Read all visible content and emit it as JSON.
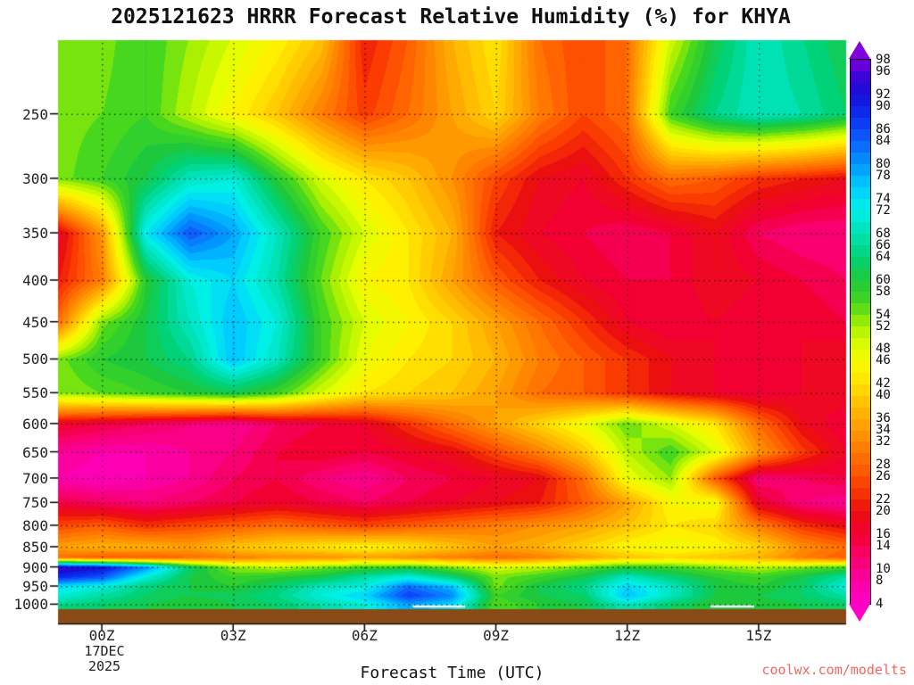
{
  "watermark": "coolwx.com/modelts",
  "chart_data": {
    "type": "heatmap",
    "title": "2025121623 HRRR Forecast Relative Humidity (%) for KHYA",
    "units": "% relative humidity",
    "xlabel": "Forecast Time (UTC)",
    "x_tick_labels": [
      "00Z",
      "03Z",
      "06Z",
      "09Z",
      "12Z",
      "15Z"
    ],
    "x_tick_hours": [
      1,
      4,
      7,
      10,
      13,
      16
    ],
    "hours_total": 18,
    "start_date_line1": "17DEC",
    "start_date_line2": "2025",
    "y_tick_labels": [
      250,
      300,
      350,
      400,
      450,
      500,
      550,
      600,
      650,
      700,
      750,
      800,
      850,
      900,
      950,
      1000
    ],
    "y_scale": "log-pressure",
    "pressure_axis_top_hpa": 203,
    "pressure_axis_bottom_hpa": 1056,
    "surface_pressure_hpa": 1012,
    "ground_color": "#8a4a16",
    "forecast_hours": [
      0,
      1,
      2,
      3,
      4,
      5,
      6,
      7,
      8,
      9,
      10,
      11,
      12,
      13,
      14,
      15,
      16,
      17,
      18
    ],
    "pressure_levels_hpa": [
      200,
      250,
      300,
      350,
      400,
      450,
      500,
      550,
      600,
      650,
      700,
      750,
      800,
      850,
      875,
      900,
      925,
      950,
      975,
      1000
    ],
    "rh_percent": [
      [
        56,
        55,
        58,
        54,
        50,
        46,
        40,
        22,
        28,
        38,
        44,
        30,
        26,
        30,
        50,
        62,
        70,
        66,
        62
      ],
      [
        55,
        56,
        58,
        52,
        46,
        40,
        32,
        25,
        30,
        36,
        42,
        32,
        26,
        30,
        58,
        66,
        70,
        68,
        64
      ],
      [
        55,
        58,
        62,
        70,
        72,
        60,
        50,
        44,
        40,
        34,
        26,
        20,
        18,
        24,
        30,
        28,
        24,
        22,
        20
      ],
      [
        18,
        35,
        74,
        86,
        80,
        70,
        58,
        50,
        44,
        38,
        22,
        18,
        16,
        14,
        16,
        20,
        14,
        12,
        12
      ],
      [
        22,
        32,
        60,
        72,
        76,
        68,
        56,
        46,
        44,
        36,
        28,
        22,
        18,
        16,
        16,
        20,
        18,
        16,
        14
      ],
      [
        30,
        55,
        62,
        70,
        78,
        72,
        58,
        50,
        46,
        42,
        36,
        30,
        24,
        18,
        16,
        18,
        16,
        18,
        16
      ],
      [
        55,
        60,
        62,
        66,
        78,
        70,
        58,
        48,
        44,
        42,
        38,
        32,
        28,
        24,
        20,
        18,
        16,
        18,
        20
      ],
      [
        54,
        56,
        58,
        60,
        62,
        58,
        50,
        44,
        42,
        40,
        36,
        30,
        28,
        24,
        20,
        18,
        16,
        18,
        20
      ],
      [
        18,
        16,
        14,
        12,
        10,
        14,
        16,
        18,
        24,
        30,
        36,
        42,
        48,
        56,
        50,
        44,
        30,
        20,
        16
      ],
      [
        10,
        8,
        8,
        10,
        12,
        16,
        18,
        16,
        18,
        20,
        26,
        32,
        40,
        52,
        58,
        50,
        35,
        25,
        18
      ],
      [
        8,
        6,
        8,
        10,
        14,
        16,
        12,
        10,
        14,
        16,
        18,
        20,
        30,
        48,
        54,
        28,
        12,
        14,
        16
      ],
      [
        16,
        14,
        12,
        14,
        16,
        18,
        16,
        14,
        16,
        18,
        20,
        22,
        28,
        36,
        46,
        48,
        18,
        12,
        10
      ],
      [
        26,
        28,
        24,
        26,
        28,
        30,
        28,
        26,
        28,
        30,
        32,
        34,
        36,
        40,
        44,
        42,
        32,
        24,
        20
      ],
      [
        36,
        38,
        38,
        36,
        40,
        42,
        44,
        46,
        44,
        40,
        36,
        38,
        42,
        46,
        48,
        46,
        42,
        34,
        30
      ],
      [
        30,
        28,
        28,
        30,
        32,
        34,
        34,
        36,
        34,
        32,
        30,
        32,
        36,
        40,
        42,
        40,
        38,
        32,
        28
      ],
      [
        96,
        93,
        82,
        64,
        54,
        52,
        55,
        58,
        60,
        55,
        50,
        52,
        56,
        60,
        58,
        55,
        52,
        55,
        58
      ],
      [
        90,
        86,
        72,
        62,
        58,
        60,
        62,
        68,
        72,
        65,
        55,
        58,
        62,
        70,
        65,
        60,
        58,
        62,
        68
      ],
      [
        75,
        72,
        65,
        62,
        60,
        64,
        70,
        72,
        84,
        78,
        55,
        62,
        66,
        76,
        70,
        62,
        60,
        64,
        72
      ],
      [
        72,
        68,
        64,
        62,
        63,
        66,
        72,
        76,
        88,
        82,
        58,
        62,
        64,
        78,
        70,
        62,
        62,
        64,
        68
      ],
      [
        66,
        64,
        62,
        60,
        62,
        64,
        68,
        72,
        80,
        76,
        56,
        60,
        62,
        70,
        64,
        60,
        60,
        62,
        64
      ]
    ],
    "surface_marks": [
      {
        "hour_start": 8.1,
        "hour_end": 9.3
      },
      {
        "hour_start": 14.9,
        "hour_end": 15.9
      }
    ],
    "colorbar": {
      "tick_labels": [
        98,
        96,
        92,
        90,
        86,
        84,
        80,
        78,
        74,
        72,
        68,
        66,
        64,
        60,
        58,
        54,
        52,
        48,
        46,
        42,
        40,
        36,
        34,
        32,
        28,
        26,
        22,
        20,
        16,
        14,
        10,
        8,
        4
      ],
      "value_min": 4,
      "value_max": 98,
      "step": 2,
      "colormap_anchors": [
        {
          "value": 4,
          "color": "#ff00c8"
        },
        {
          "value": 8,
          "color": "#fa00a0"
        },
        {
          "value": 12,
          "color": "#f8006e"
        },
        {
          "value": 16,
          "color": "#f20032"
        },
        {
          "value": 20,
          "color": "#eb0f0f"
        },
        {
          "value": 24,
          "color": "#fa3c00"
        },
        {
          "value": 28,
          "color": "#ff6400"
        },
        {
          "value": 32,
          "color": "#ff8700"
        },
        {
          "value": 36,
          "color": "#ffaa00"
        },
        {
          "value": 40,
          "color": "#ffcd00"
        },
        {
          "value": 44,
          "color": "#fff000"
        },
        {
          "value": 48,
          "color": "#e6ff00"
        },
        {
          "value": 52,
          "color": "#aaf000"
        },
        {
          "value": 56,
          "color": "#46d71e"
        },
        {
          "value": 60,
          "color": "#1ec83c"
        },
        {
          "value": 64,
          "color": "#00d278"
        },
        {
          "value": 68,
          "color": "#00e1b4"
        },
        {
          "value": 72,
          "color": "#00f0e6"
        },
        {
          "value": 76,
          "color": "#00cdff"
        },
        {
          "value": 80,
          "color": "#0096ff"
        },
        {
          "value": 84,
          "color": "#0f5fff"
        },
        {
          "value": 88,
          "color": "#0a32f0"
        },
        {
          "value": 92,
          "color": "#140fd7"
        },
        {
          "value": 96,
          "color": "#4b00d7"
        },
        {
          "value": 98,
          "color": "#8200dc"
        }
      ]
    }
  }
}
